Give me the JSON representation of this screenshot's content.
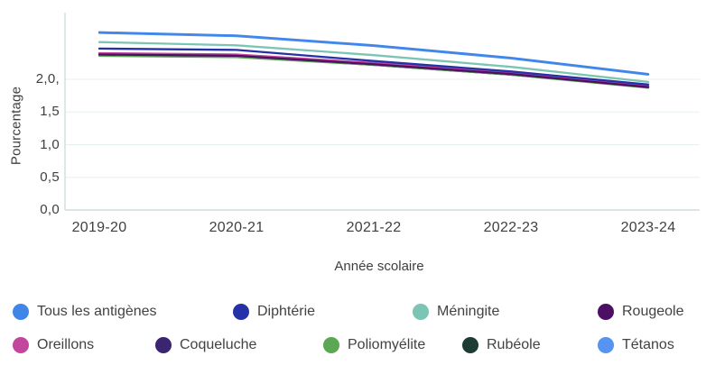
{
  "chart_data": {
    "type": "line",
    "title": "",
    "xlabel": "Année scolaire",
    "ylabel": "Pourcentage",
    "categories": [
      "2019-20",
      "2020-21",
      "2021-22",
      "2022-23",
      "2023-24"
    ],
    "series": [
      {
        "name": "Tous les antigènes",
        "color": "#3f86e8",
        "values": [
          2.72,
          2.67,
          2.52,
          2.33,
          2.08
        ]
      },
      {
        "name": "Diphtérie",
        "color": "#2531a8",
        "values": [
          2.47,
          2.45,
          2.28,
          2.12,
          1.92
        ]
      },
      {
        "name": "Méningite",
        "color": "#7cc4b4",
        "values": [
          2.57,
          2.52,
          2.37,
          2.19,
          1.96
        ]
      },
      {
        "name": "Rougeole",
        "color": "#4c0f63",
        "values": [
          2.38,
          2.36,
          2.23,
          2.08,
          1.88
        ]
      },
      {
        "name": "Oreillons",
        "color": "#c2479c",
        "values": [
          2.4,
          2.38,
          2.25,
          2.1,
          1.9
        ]
      },
      {
        "name": "Coqueluche",
        "color": "#3b2470",
        "values": [
          2.39,
          2.37,
          2.24,
          2.09,
          1.89
        ]
      },
      {
        "name": "Poliomyélite",
        "color": "#5ba754",
        "values": [
          2.36,
          2.34,
          2.22,
          2.07,
          1.87
        ]
      },
      {
        "name": "Rubéole",
        "color": "#1d3c34",
        "values": [
          2.37,
          2.35,
          2.22,
          2.07,
          1.88
        ]
      },
      {
        "name": "Tétanos",
        "color": "#5793f0",
        "values": [
          2.71,
          2.66,
          2.51,
          2.32,
          2.07
        ]
      }
    ],
    "yticks": [
      {
        "label": "2,0,",
        "value": 2.0
      },
      {
        "label": "1,5",
        "value": 1.5
      },
      {
        "label": "1,0",
        "value": 1.0
      },
      {
        "label": "0,5",
        "value": 0.5
      },
      {
        "label": "0,0",
        "value": 0.0
      }
    ],
    "ylim": [
      0,
      2.8
    ],
    "grid": "faint horizontal gridlines",
    "legend_position": "bottom",
    "axis_color": "#cfdeda",
    "grid_color": "#e7f0ee"
  },
  "legend": {
    "items": [
      {
        "label": "Tous les antigènes",
        "color": "#3f86e8"
      },
      {
        "label": "Diphtérie",
        "color": "#2531a8"
      },
      {
        "label": "Méningite",
        "color": "#7cc4b4"
      },
      {
        "label": "Rougeole",
        "color": "#4c0f63"
      },
      {
        "label": "Oreillons",
        "color": "#c2479c"
      },
      {
        "label": "Coqueluche",
        "color": "#3b2470"
      },
      {
        "label": "Poliomyélite",
        "color": "#5ba754"
      },
      {
        "label": "Rubéole",
        "color": "#1d3c34"
      },
      {
        "label": "Tétanos",
        "color": "#5793f0"
      }
    ]
  }
}
